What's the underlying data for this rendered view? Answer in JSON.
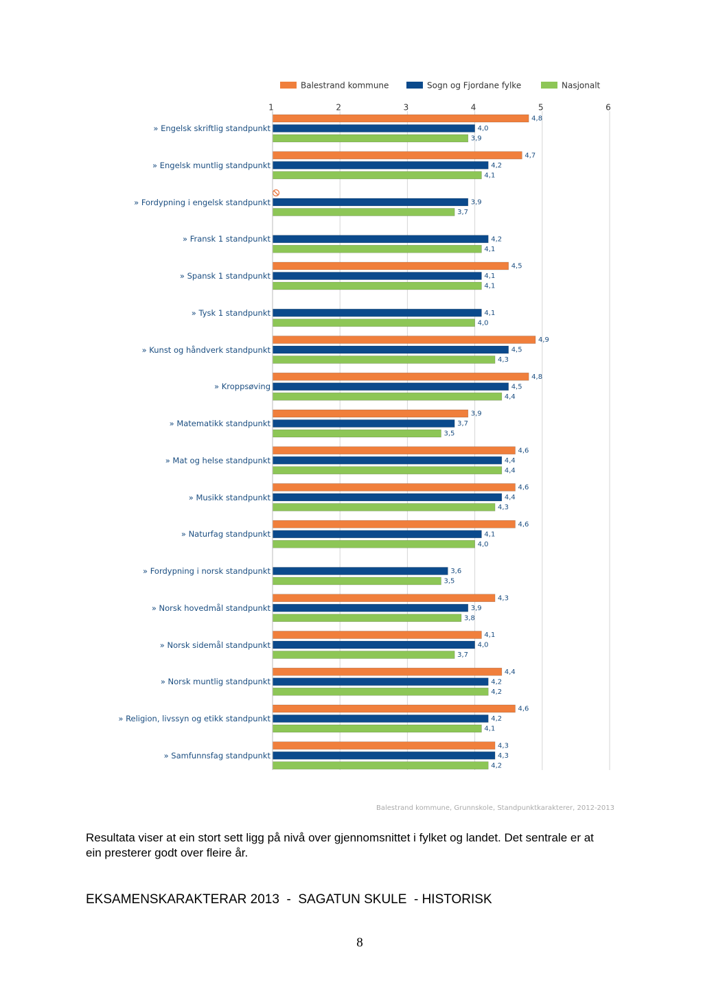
{
  "chart_data": {
    "type": "bar",
    "orientation": "horizontal",
    "categories": [
      "» Engelsk skriftlig standpunkt",
      "» Engelsk muntlig standpunkt",
      "» Fordypning i engelsk standpunkt",
      "» Fransk 1 standpunkt",
      "» Spansk 1 standpunkt",
      "» Tysk 1 standpunkt",
      "» Kunst og håndverk standpunkt",
      "» Kroppsøving",
      "» Matematikk standpunkt",
      "» Mat og helse standpunkt",
      "» Musikk standpunkt",
      "» Naturfag standpunkt",
      "» Fordypning i norsk standpunkt",
      "» Norsk hovedmål standpunkt",
      "» Norsk sidemål standpunkt",
      "» Norsk muntlig standpunkt",
      "» Religion, livssyn og etikk standpunkt",
      "» Samfunnsfag standpunkt"
    ],
    "series": [
      {
        "name": "Balestrand kommune",
        "color": "#f07f3c",
        "values": [
          4.8,
          4.7,
          null,
          null,
          4.5,
          null,
          4.9,
          4.8,
          3.9,
          4.6,
          4.6,
          4.6,
          null,
          4.3,
          4.1,
          4.4,
          4.6,
          4.3
        ],
        "value_labels": [
          "4,8",
          "4,7",
          null,
          null,
          "4,5",
          null,
          "4,9",
          "4,8",
          "3,9",
          "4,6",
          "4,6",
          "4,6",
          null,
          "4,3",
          "4,1",
          "4,4",
          "4,6",
          "4,3"
        ]
      },
      {
        "name": "Sogn og Fjordane fylke",
        "color": "#0b4a8c",
        "values": [
          4.0,
          4.2,
          3.9,
          4.2,
          4.1,
          4.1,
          4.5,
          4.5,
          3.7,
          4.4,
          4.4,
          4.1,
          3.6,
          3.9,
          4.0,
          4.2,
          4.2,
          4.3
        ],
        "value_labels": [
          "4,0",
          "4,2",
          "3,9",
          "4,2",
          "4,1",
          "4,1",
          "4,5",
          "4,5",
          "3,7",
          "4,4",
          "4,4",
          "4,1",
          "3,6",
          "3,9",
          "4,0",
          "4,2",
          "4,2",
          "4,3"
        ]
      },
      {
        "name": "Nasjonalt",
        "color": "#8dc656",
        "values": [
          3.9,
          4.1,
          3.7,
          4.1,
          4.1,
          4.0,
          4.3,
          4.4,
          3.5,
          4.4,
          4.3,
          4.0,
          3.5,
          3.8,
          3.7,
          4.2,
          4.1,
          4.2
        ],
        "value_labels": [
          "3,9",
          "4,1",
          "3,7",
          "4,1",
          "4,1",
          "4,0",
          "4,3",
          "4,4",
          "3,5",
          "4,4",
          "4,3",
          "4,0",
          "3,5",
          "3,8",
          "3,7",
          "4,2",
          "4,1",
          "4,2"
        ]
      }
    ],
    "xlim": [
      1,
      6
    ],
    "xticks": [
      1,
      2,
      3,
      4,
      5,
      6
    ],
    "grid": true,
    "legend": "top",
    "source": "Balestrand kommune, Grunnskole, Standpunktkarakterer, 2012-2013"
  },
  "document": {
    "paragraph": "Resultata viser at ein stort sett ligg på nivå over gjennomsnittet i fylket og landet. Det sentrale er at ein presterer godt over fleire år.",
    "heading": "EKSAMENSKARAKTERAR 2013  -  SAGATUN SKULE  - HISTORISK",
    "page_number": "8"
  }
}
